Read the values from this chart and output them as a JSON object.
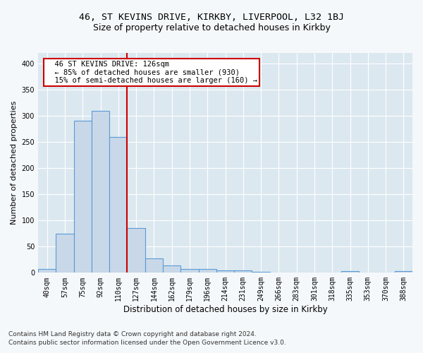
{
  "title_line1": "46, ST KEVINS DRIVE, KIRKBY, LIVERPOOL, L32 1BJ",
  "title_line2": "Size of property relative to detached houses in Kirkby",
  "xlabel": "Distribution of detached houses by size in Kirkby",
  "ylabel": "Number of detached properties",
  "categories": [
    "40sqm",
    "57sqm",
    "75sqm",
    "92sqm",
    "110sqm",
    "127sqm",
    "144sqm",
    "162sqm",
    "179sqm",
    "196sqm",
    "214sqm",
    "231sqm",
    "249sqm",
    "266sqm",
    "283sqm",
    "301sqm",
    "318sqm",
    "335sqm",
    "353sqm",
    "370sqm",
    "388sqm"
  ],
  "values": [
    7,
    75,
    290,
    310,
    260,
    85,
    27,
    14,
    7,
    7,
    4,
    4,
    2,
    0,
    0,
    0,
    0,
    3,
    0,
    0,
    3
  ],
  "bar_color": "#c8d8e8",
  "bar_edge_color": "#5b9bd5",
  "bar_edge_width": 0.8,
  "red_line_index": 4,
  "annotation_line1": "  46 ST KEVINS DRIVE: 126sqm",
  "annotation_line2": "  ← 85% of detached houses are smaller (930)",
  "annotation_line3": "  15% of semi-detached houses are larger (160) →",
  "annotation_box_color": "#ffffff",
  "annotation_box_edge_color": "#cc0000",
  "ylim": [
    0,
    420
  ],
  "yticks": [
    0,
    50,
    100,
    150,
    200,
    250,
    300,
    350,
    400
  ],
  "background_color": "#dce8f0",
  "grid_color": "#ffffff",
  "footer_line1": "Contains HM Land Registry data © Crown copyright and database right 2024.",
  "footer_line2": "Contains public sector information licensed under the Open Government Licence v3.0.",
  "title_fontsize": 9.5,
  "subtitle_fontsize": 9,
  "tick_fontsize": 7,
  "ylabel_fontsize": 8,
  "xlabel_fontsize": 8.5,
  "footer_fontsize": 6.5,
  "annotation_fontsize": 7.5
}
